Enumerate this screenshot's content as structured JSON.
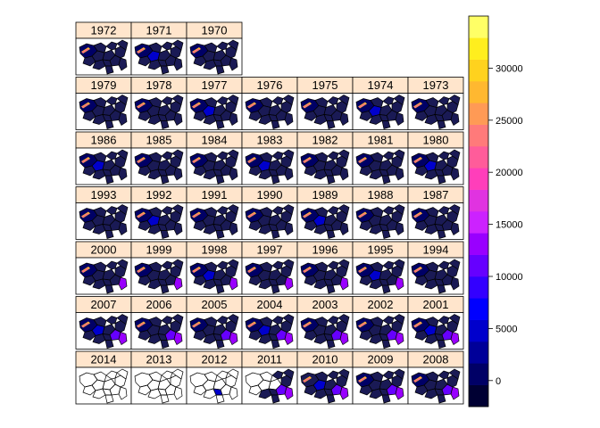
{
  "chart_data": {
    "type": "choropleth-small-multiples",
    "panels_rows": [
      [
        "1972",
        "1971",
        "1970"
      ],
      [
        "1979",
        "1978",
        "1977",
        "1976",
        "1975",
        "1974",
        "1973"
      ],
      [
        "1986",
        "1985",
        "1984",
        "1983",
        "1982",
        "1981",
        "1980"
      ],
      [
        "1993",
        "1992",
        "1991",
        "1990",
        "1989",
        "1988",
        "1987"
      ],
      [
        "2000",
        "1999",
        "1998",
        "1997",
        "1996",
        "1995",
        "1994"
      ],
      [
        "2007",
        "2006",
        "2005",
        "2004",
        "2003",
        "2002",
        "2001"
      ],
      [
        "2014",
        "2013",
        "2012",
        "2011",
        "2010",
        "2009",
        "2008"
      ]
    ],
    "colorkey": {
      "range": [
        -2500,
        35000
      ],
      "ticks": [
        0,
        5000,
        10000,
        15000,
        20000,
        25000,
        30000
      ],
      "tick_labels": [
        "0",
        "5000",
        "10000",
        "15000",
        "20000",
        "25000",
        "30000"
      ],
      "colors": [
        "#000033",
        "#000066",
        "#000099",
        "#0000CC",
        "#0000FF",
        "#3300FF",
        "#6600FF",
        "#9900FF",
        "#CC22FF",
        "#E033E0",
        "#FF3EBA",
        "#FF5C9A",
        "#FF7A7A",
        "#FF9A55",
        "#FFB830",
        "#FFD21E",
        "#FFEE1E",
        "#FFFF66"
      ]
    },
    "strip_color": "#FFE5CC",
    "region_fill_dark": "#1a1a55",
    "region_highlight_colors": [
      "#FFB830",
      "#FF3EBA",
      "#9900FF"
    ]
  }
}
